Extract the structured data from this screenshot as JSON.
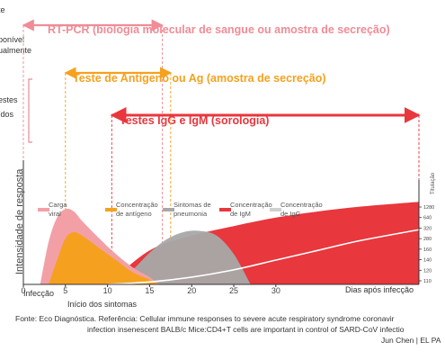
{
  "left_labels": [
    "te",
    "ponível",
    "ualmente",
    "estes",
    "ídos"
  ],
  "tests": [
    {
      "id": "pcr",
      "label": "RT-PCR (biologia molecular de sangue ou amostra de secreção)",
      "color": "#f08c96",
      "start_day": 0,
      "end_day": 16.5
    },
    {
      "id": "ag",
      "label": "Teste de Antígeno ou Ag (amostra de secreção)",
      "color": "#f5a11f",
      "start_day": 5,
      "end_day": 17.5
    },
    {
      "id": "ab",
      "label": "Testes IgG e IgM (sorologia)",
      "color": "#e8373d",
      "start_day": 10.5,
      "end_day": 47
    }
  ],
  "chart_data": {
    "type": "area",
    "ylabel": "Intensidade de resposta",
    "x_ticks": [
      "0",
      "5",
      "10",
      "15",
      "20",
      "25",
      "30"
    ],
    "x_tick_values": [
      0,
      5,
      10,
      15,
      20,
      25,
      30
    ],
    "x_end_label": "Dias após infecção",
    "xlim": [
      0,
      47
    ],
    "ylim": [
      0,
      1
    ],
    "annotations": {
      "infection": "Infecção",
      "symptoms": "Início dos sintomas"
    },
    "right_axis": {
      "title": "Titulação",
      "ticks": [
        "1280",
        "640",
        "320",
        "280",
        "160",
        "140",
        "120",
        "110"
      ]
    },
    "series": [
      {
        "name": "Carga viral",
        "color": "#f2a0a6",
        "x": [
          2,
          3,
          4,
          5,
          6,
          7,
          9,
          11,
          13,
          15,
          16
        ],
        "y": [
          0,
          0.35,
          0.55,
          0.62,
          0.6,
          0.52,
          0.38,
          0.25,
          0.14,
          0.06,
          0
        ]
      },
      {
        "name": "Concentração de antígeno",
        "color": "#f5a11f",
        "x": [
          3,
          4,
          5,
          6,
          7,
          9,
          11,
          13,
          15,
          16
        ],
        "y": [
          0,
          0.2,
          0.38,
          0.43,
          0.4,
          0.3,
          0.2,
          0.1,
          0.04,
          0
        ]
      },
      {
        "name": "Sintomas de pneumonia",
        "color": "#a8a8a8",
        "x": [
          11,
          13,
          15,
          17,
          19,
          21,
          23,
          25,
          27
        ],
        "y": [
          0,
          0.12,
          0.26,
          0.37,
          0.43,
          0.44,
          0.4,
          0.25,
          0
        ]
      },
      {
        "name": "Concentração de IgM",
        "color": "#e8373d",
        "x": [
          10,
          15,
          20,
          25,
          30,
          35,
          40,
          47
        ],
        "y": [
          0,
          0.28,
          0.4,
          0.48,
          0.55,
          0.6,
          0.64,
          0.68
        ]
      },
      {
        "name": "Concentração de IgG",
        "color": "#ffffff",
        "x": [
          10,
          15,
          20,
          25,
          30,
          35,
          40,
          47
        ],
        "y": [
          0,
          0.02,
          0.06,
          0.12,
          0.2,
          0.28,
          0.36,
          0.45
        ]
      }
    ],
    "legend_labels": [
      {
        "line1": "Carga",
        "line2": "viral"
      },
      {
        "line1": "Concentração",
        "line2": "de antígeno"
      },
      {
        "line1": "Sintomas de",
        "line2": "pneumonia"
      },
      {
        "line1": "Concentração",
        "line2": "de IgM"
      },
      {
        "line1": "Concentração",
        "line2": "de IgG"
      }
    ]
  },
  "footer": {
    "line1": "Fonte: Eco Diagnóstica. Referência: Cellular immune responses to severe acute respiratory syndrome coronavir",
    "line2": "infection insenescent BALB/c Mice:CD4+T cells are important in control of SARD-CoV infectio",
    "line3": "Jun Chen | EL PA"
  }
}
